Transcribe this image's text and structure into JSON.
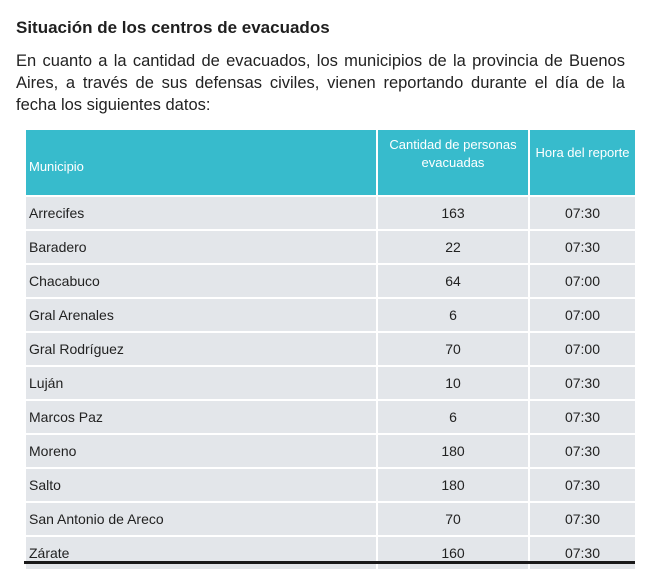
{
  "title": "Situación de los centros de evacuados",
  "intro": "En cuanto a la cantidad de evacuados, los municipios de la provincia de Buenos Aires, a través de sus defensas civiles, vienen reportando durante el día de la fecha los siguientes datos:",
  "table": {
    "headers": [
      "Municipio",
      "Cantidad de personas evacuadas",
      "Hora del reporte"
    ],
    "rows": [
      [
        "Arrecifes",
        "163",
        "07:30"
      ],
      [
        "Baradero",
        "22",
        "07:30"
      ],
      [
        "Chacabuco",
        "64",
        "07:00"
      ],
      [
        "Gral Arenales",
        "6",
        "07:00"
      ],
      [
        "Gral Rodríguez",
        "70",
        "07:00"
      ],
      [
        "Luján",
        "10",
        "07:30"
      ],
      [
        "Marcos Paz",
        "6",
        "07:30"
      ],
      [
        "Moreno",
        "180",
        "07:30"
      ],
      [
        "Salto",
        "180",
        "07:30"
      ],
      [
        "San Antonio de Areco",
        "70",
        "07:30"
      ],
      [
        "Zárate",
        "160",
        "07:30"
      ]
    ]
  },
  "colors": {
    "header_bg": "#37bbcc",
    "row_bg": "#e3e6ea"
  }
}
